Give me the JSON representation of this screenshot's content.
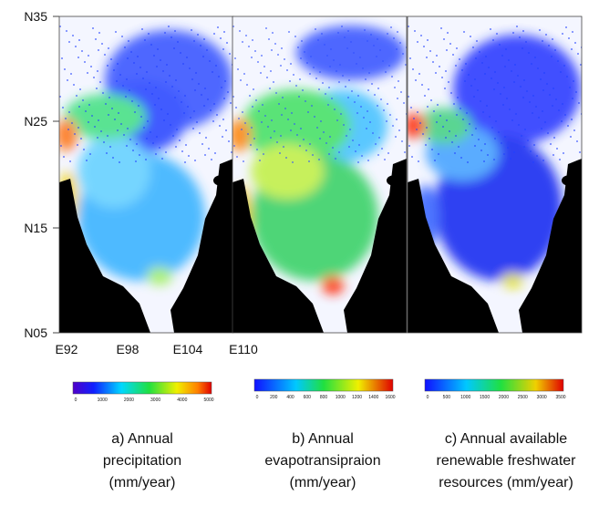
{
  "map": {
    "latitude_labels": [
      "N35",
      "N25",
      "N15",
      "N05"
    ],
    "longitude_labels": [
      "E92",
      "E98",
      "E104",
      "E110"
    ]
  },
  "panels": [
    {
      "colorbar_ticks": [
        "0",
        "1000",
        "2000",
        "3000",
        "4000",
        "5000"
      ],
      "caption": [
        "a) Annual",
        "precipitation",
        "(mm/year)"
      ]
    },
    {
      "colorbar_ticks": [
        "0",
        "200",
        "400",
        "600",
        "800",
        "1000",
        "1200",
        "1400",
        "1600"
      ],
      "caption": [
        "b) Annual",
        "evapotransipraion",
        "(mm/year)"
      ]
    },
    {
      "colorbar_ticks": [
        "0",
        "500",
        "1000",
        "1500",
        "2000",
        "2500",
        "3000",
        "3500"
      ],
      "caption": [
        "c) Annual available",
        "renewable freshwater",
        "resources (mm/year)"
      ]
    }
  ]
}
